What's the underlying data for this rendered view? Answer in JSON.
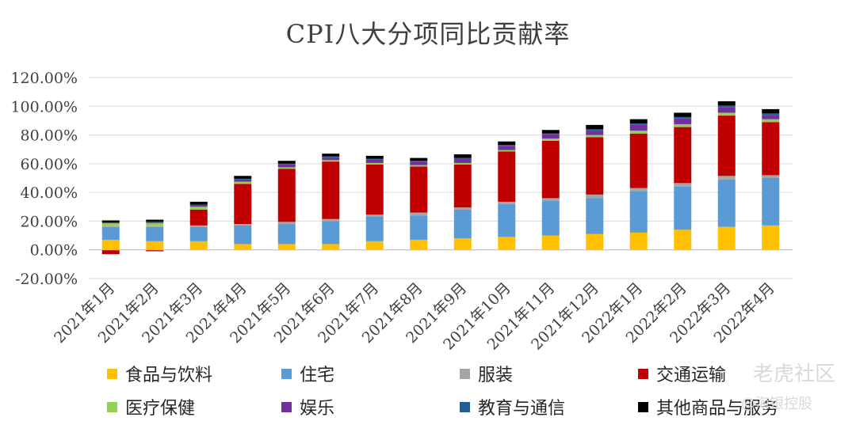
{
  "chart_data": {
    "type": "bar",
    "stacked": true,
    "title": "CPI八大分项同比贡献率",
    "categories": [
      "2021年1月",
      "2021年2月",
      "2021年3月",
      "2021年4月",
      "2021年5月",
      "2021年6月",
      "2021年7月",
      "2021年8月",
      "2021年9月",
      "2021年10月",
      "2021年11月",
      "2021年12月",
      "2022年1月",
      "2022年2月",
      "2022年3月",
      "2022年4月"
    ],
    "ylim": [
      -20,
      120
    ],
    "yticks": [
      -20,
      0,
      20,
      40,
      60,
      80,
      100,
      120
    ],
    "ytick_labels": [
      "-20.00%",
      "0.00%",
      "20.00%",
      "40.00%",
      "60.00%",
      "80.00%",
      "100.00%",
      "120.00%"
    ],
    "series": [
      {
        "name": "食品与饮料",
        "color": "#FFC000",
        "values": [
          7,
          6,
          6,
          4,
          4,
          4,
          6,
          7,
          8,
          9,
          10,
          11,
          12,
          14,
          16,
          17
        ]
      },
      {
        "name": "住宅",
        "color": "#5B9BD5",
        "values": [
          9,
          10,
          10,
          13,
          14,
          16,
          17,
          17,
          20,
          23,
          24,
          25,
          29,
          30,
          33,
          33
        ]
      },
      {
        "name": "服装",
        "color": "#A5A5A5",
        "values": [
          0.5,
          0.5,
          1,
          1,
          1.5,
          1.5,
          1.5,
          2,
          1.5,
          1.5,
          2,
          2.5,
          2,
          2.5,
          2.5,
          2
        ]
      },
      {
        "name": "交通运输",
        "color": "#C00000",
        "values": [
          -3,
          -1,
          11,
          28,
          37,
          40,
          35,
          32,
          30,
          35,
          40,
          40,
          38,
          39,
          42,
          37
        ]
      },
      {
        "name": "医疗保健",
        "color": "#92D050",
        "values": [
          2,
          2,
          2,
          1.5,
          1,
          1,
          1,
          1,
          1,
          1,
          1.5,
          1.5,
          2,
          2,
          2,
          2
        ]
      },
      {
        "name": "娱乐",
        "color": "#7030A0",
        "values": [
          0.5,
          0.5,
          1,
          1.5,
          2,
          2,
          2.5,
          2.5,
          3,
          3,
          3,
          3,
          4,
          4,
          4,
          3
        ]
      },
      {
        "name": "教育与通信",
        "color": "#255E91",
        "values": [
          0,
          0.5,
          0.5,
          0.5,
          0.5,
          0.5,
          0.5,
          0.5,
          0.5,
          0.5,
          0.5,
          1,
          1,
          1,
          1,
          1
        ]
      },
      {
        "name": "其他商品与服务",
        "color": "#000000",
        "values": [
          1.5,
          1.5,
          2,
          2,
          2,
          2,
          2,
          2,
          2.5,
          2.5,
          2.5,
          3,
          3,
          3,
          3,
          3
        ]
      }
    ],
    "legend_position": "bottom"
  },
  "watermark": {
    "line1": "老虎社区",
    "line2": "@海银控股"
  }
}
